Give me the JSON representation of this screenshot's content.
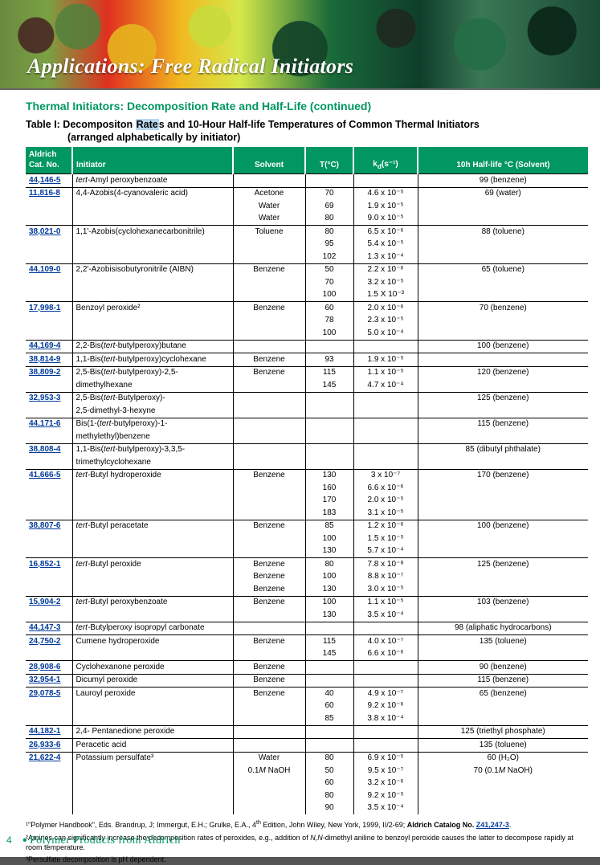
{
  "banner_title": "Applications: Free Radical Initiators",
  "subtitle": "Thermal Initiators: Decomposition Rate and Half-Life (continued)",
  "table_caption_l1a": "Table I: Decompositon ",
  "table_caption_l1_hl": "Rate",
  "table_caption_l1b": "s and 10-Hour Half-life Temperatures of Common Thermal Initiators",
  "table_caption_l2": "(arranged alphabetically by initiator)",
  "headers": {
    "c1": "Aldrich\nCat. No.",
    "c2": "Initiator",
    "c3": "Solvent",
    "c4": "T(°C)",
    "c5": "k",
    "c5sub": "d",
    "c5unit": "(s⁻¹)",
    "c6": "10h Half-life °C (Solvent)"
  },
  "rows": [
    {
      "top": true,
      "cat": "44,146-5",
      "init": "tert-Amyl peroxybenzoate",
      "init_ital_pfx": "tert-",
      "sol": "",
      "t": "",
      "k": "",
      "hl": "99 (benzene)"
    },
    {
      "top": true,
      "cat": "11,816-8",
      "init": "4,4-Azobis(4-cyanovaleric acid)",
      "sol": "Acetone",
      "t": "70",
      "k": "4.6 x 10⁻⁵",
      "hl": "69 (water)"
    },
    {
      "cat": "",
      "init": "",
      "sol": "Water",
      "t": "69",
      "k": "1.9 x 10⁻⁵",
      "hl": ""
    },
    {
      "cat": "",
      "init": "",
      "sol": "Water",
      "t": "80",
      "k": "9.0 x 10⁻⁵",
      "hl": ""
    },
    {
      "top": true,
      "cat": "38,021-0",
      "init": "1,1'-Azobis(cyclohexanecarbonitrile)",
      "sol": "Toluene",
      "t": "80",
      "k": "6.5 x 10⁻⁶",
      "hl": "88 (toluene)"
    },
    {
      "cat": "",
      "init": "",
      "sol": "",
      "t": "95",
      "k": "5.4 x 10⁻⁵",
      "hl": ""
    },
    {
      "cat": "",
      "init": "",
      "sol": "",
      "t": "102",
      "k": "1.3 x 10⁻⁴",
      "hl": ""
    },
    {
      "top": true,
      "cat": "44,109-0",
      "init": "2,2'-Azobisisobutyronitrile (AIBN)",
      "sol": "Benzene",
      "t": "50",
      "k": "2.2 x 10⁻⁶",
      "hl": "65 (toluene)"
    },
    {
      "cat": "",
      "init": "",
      "sol": "",
      "t": "70",
      "k": "3.2 x 10⁻⁵",
      "hl": ""
    },
    {
      "cat": "",
      "init": "",
      "sol": "",
      "t": "100",
      "k": "1.5 X 10⁻³",
      "hl": ""
    },
    {
      "top": true,
      "cat": "17,998-1",
      "init": "Benzoyl peroxide²",
      "sol": "Benzene",
      "t": "60",
      "k": "2.0 x 10⁻⁶",
      "hl": "70 (benzene)"
    },
    {
      "cat": "",
      "init": "",
      "sol": "",
      "t": "78",
      "k": "2.3 x 10⁻⁵",
      "hl": ""
    },
    {
      "cat": "",
      "init": "",
      "sol": "",
      "t": "100",
      "k": "5.0 x 10⁻⁴",
      "hl": ""
    },
    {
      "top": true,
      "cat": "44,169-4",
      "init": "2,2-Bis(tert-butylperoxy)butane",
      "init_ital_mid": "tert-",
      "sol": "",
      "t": "",
      "k": "",
      "hl": "100 (benzene)"
    },
    {
      "top": true,
      "cat": "38,814-9",
      "init": "1,1-Bis(tert-butylperoxy)cyclohexane",
      "init_ital_mid": "tert-",
      "sol": "Benzene",
      "t": "93",
      "k": "1.9 x 10⁻⁵",
      "hl": ""
    },
    {
      "top": true,
      "cat": "38,809-2",
      "init": "2,5-Bis(tert-butylperoxy)-2,5-",
      "init_ital_mid": "tert-",
      "sol": "Benzene",
      "t": "115",
      "k": "1.1 x 10⁻⁵",
      "hl": "120 (benzene)"
    },
    {
      "cat": "",
      "init": "dimethylhexane",
      "sol": "",
      "t": "145",
      "k": "4.7 x 10⁻⁴",
      "hl": ""
    },
    {
      "top": true,
      "cat": "32,953-3",
      "init": "2,5-Bis(tert-Butylperoxy)-",
      "init_ital_mid": "tert-",
      "sol": "",
      "t": "",
      "k": "",
      "hl": "125 (benzene)"
    },
    {
      "cat": "",
      "init": "2,5-dimethyl-3-hexyne",
      "sol": "",
      "t": "",
      "k": "",
      "hl": ""
    },
    {
      "top": true,
      "cat": "44,171-6",
      "init": "Bis(1-(tert-butylperoxy)-1-",
      "init_ital_mid": "tert-",
      "sol": "",
      "t": "",
      "k": "",
      "hl": "115 (benzene)"
    },
    {
      "cat": "",
      "init": "methylethyl)benzene",
      "sol": "",
      "t": "",
      "k": "",
      "hl": ""
    },
    {
      "top": true,
      "cat": "38,808-4",
      "init": "1,1-Bis(tert-butylperoxy)-3,3,5-",
      "init_ital_mid": "tert-",
      "sol": "",
      "t": "",
      "k": "",
      "hl": "85 (dibutyl phthalate)"
    },
    {
      "cat": "",
      "init": "trimethylcyclohexane",
      "sol": "",
      "t": "",
      "k": "",
      "hl": ""
    },
    {
      "top": true,
      "cat": "41,666-5",
      "init": "tert-Butyl hydroperoxide",
      "init_ital_pfx": "tert-",
      "sol": "Benzene",
      "t": "130",
      "k": "3  x 10⁻⁷",
      "hl": "170 (benzene)"
    },
    {
      "cat": "",
      "init": "",
      "sol": "",
      "t": "160",
      "k": "6.6 x 10⁻⁶",
      "hl": ""
    },
    {
      "cat": "",
      "init": "",
      "sol": "",
      "t": "170",
      "k": "2.0 x 10⁻⁵",
      "hl": ""
    },
    {
      "cat": "",
      "init": "",
      "sol": "",
      "t": "183",
      "k": "3.1 x 10⁻⁵",
      "hl": ""
    },
    {
      "top": true,
      "cat": "38,807-6",
      "init": "tert-Butyl peracetate",
      "init_ital_pfx": "tert-",
      "sol": "Benzene",
      "t": "85",
      "k": "1.2 x 10⁻⁶",
      "hl": "100 (benzene)"
    },
    {
      "cat": "",
      "init": "",
      "sol": "",
      "t": "100",
      "k": "1.5 x 10⁻⁵",
      "hl": ""
    },
    {
      "cat": "",
      "init": "",
      "sol": "",
      "t": "130",
      "k": "5.7 x 10⁻⁴",
      "hl": ""
    },
    {
      "top": true,
      "cat": "16,852-1",
      "init": "tert-Butyl peroxide",
      "init_ital_pfx": "tert-",
      "sol": "Benzene",
      "t": "80",
      "k": "7.8 x 10⁻⁸",
      "hl": "125 (benzene)"
    },
    {
      "cat": "",
      "init": "",
      "sol": "Benzene",
      "t": "100",
      "k": "8.8 x 10⁻⁷",
      "hl": ""
    },
    {
      "cat": "",
      "init": "",
      "sol": "Benzene",
      "t": "130",
      "k": "3.0 x 10⁻⁵",
      "hl": ""
    },
    {
      "top": true,
      "cat": "15,904-2",
      "init": "tert-Butyl peroxybenzoate",
      "init_ital_pfx": "tert-",
      "sol": "Benzene",
      "t": "100",
      "k": "1.1 x 10⁻⁵",
      "hl": "103 (benzene)"
    },
    {
      "cat": "",
      "init": "",
      "sol": "",
      "t": "130",
      "k": "3.5 x 10⁻⁴",
      "hl": ""
    },
    {
      "top": true,
      "cat": "44,147-3",
      "init": "tert-Butylperoxy isopropyl carbonate",
      "init_ital_pfx": "tert-",
      "sol": "",
      "t": "",
      "k": "",
      "hl": "98 (aliphatic hydrocarbons)"
    },
    {
      "top": true,
      "cat": "24,750-2",
      "init": "Cumene hydroperoxide",
      "sol": "Benzene",
      "t": "115",
      "k": "4.0 x 10⁻⁷",
      "hl": "135 (toluene)"
    },
    {
      "cat": "",
      "init": "",
      "sol": "",
      "t": "145",
      "k": "6.6 x 10⁻⁶",
      "hl": ""
    },
    {
      "top": true,
      "cat": "28,908-6",
      "init": "Cyclohexanone peroxide",
      "sol": "Benzene",
      "t": "",
      "k": "",
      "hl": "90 (benzene)"
    },
    {
      "top": true,
      "cat": "32,954-1",
      "init": "Dicumyl peroxide",
      "sol": "Benzene",
      "t": "",
      "k": "",
      "hl": "115 (benzene)"
    },
    {
      "top": true,
      "cat": "29,078-5",
      "init": "Lauroyl peroxide",
      "sol": "Benzene",
      "t": "40",
      "k": "4.9 x 10⁻⁷",
      "hl": "65 (benzene)"
    },
    {
      "cat": "",
      "init": "",
      "sol": "",
      "t": "60",
      "k": "9.2 x 10⁻⁶",
      "hl": ""
    },
    {
      "cat": "",
      "init": "",
      "sol": "",
      "t": "85",
      "k": "3.8 x 10⁻⁴",
      "hl": ""
    },
    {
      "top": true,
      "cat": "44,182-1",
      "init": "2,4- Pentanedione peroxide",
      "sol": "",
      "t": "",
      "k": "",
      "hl": "125 (triethyl phosphate)"
    },
    {
      "top": true,
      "cat": "26,933-6",
      "init": "Peracetic acid",
      "sol": "",
      "t": "",
      "k": "",
      "hl": "135 (toluene)"
    },
    {
      "top": true,
      "cat": "21,622-4",
      "init": "Potassium persulfate³",
      "sol": "Water",
      "t": "80",
      "k": "6.9 x 10⁻⁵",
      "hl": "60 (H₂O)"
    },
    {
      "cat": "",
      "init": "",
      "sol": "0.1M NaOH",
      "sol_ital": "M",
      "t": "50",
      "k": "9.5 x 10⁻⁷",
      "hl": "70 (0.1M NaOH)",
      "hl_ital": "M"
    },
    {
      "cat": "",
      "init": "",
      "sol": "",
      "t": "60",
      "k": "3.2 x 10⁻⁶",
      "hl": ""
    },
    {
      "cat": "",
      "init": "",
      "sol": "",
      "t": "80",
      "k": "9.2 x 10⁻⁵",
      "hl": ""
    },
    {
      "cat": "",
      "init": "",
      "sol": "",
      "t": "90",
      "k": "3.5 x 10⁻⁴",
      "hl": ""
    }
  ],
  "fn1a": "¹\"Polymer Handbook\", Eds. Brandrup, J; Immergut, E.H.; Grulke, E.A., 4",
  "fn1b": " Edition, John Wiley, New York, 1999, II/2-69; ",
  "fn1c": "Aldrich Catalog No. ",
  "fn1link": "Z41,247-3",
  "fn2": "²Amines can significantly increase the decomposition rates of peroxides, e.g., addition of N,N-dimethyl aniline to benzoyl peroxide causes the latter to decompose rapidly at room temperature.",
  "fn3": "³Persulfate decomposition is pH dependent.",
  "footer_page": "4",
  "footer_label": "Polymer Products from Aldrich"
}
